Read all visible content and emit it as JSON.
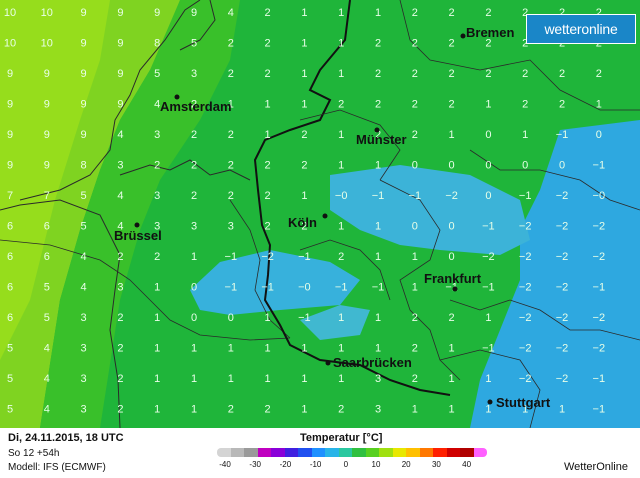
{
  "map": {
    "cities": [
      {
        "name": "Bremen"
      },
      {
        "name": "Amsterdam"
      },
      {
        "name": "Münster"
      },
      {
        "name": "Brüssel"
      },
      {
        "name": "Köln"
      },
      {
        "name": "Frankfurt"
      },
      {
        "name": "Saarbrücken"
      },
      {
        "name": "Stuttgart"
      }
    ],
    "grid_values": [
      [
        "10",
        "10",
        "9",
        "9",
        "9",
        "9",
        "4",
        "2",
        "1",
        "1",
        "1",
        "2",
        "2",
        "2",
        "2",
        "2",
        "2"
      ],
      [
        "10",
        "10",
        "9",
        "9",
        "8",
        "5",
        "2",
        "2",
        "1",
        "1",
        "2",
        "2",
        "2",
        "2",
        "2",
        "2",
        "2"
      ],
      [
        "9",
        "9",
        "9",
        "9",
        "5",
        "3",
        "2",
        "2",
        "1",
        "1",
        "2",
        "2",
        "2",
        "2",
        "2",
        "2",
        "2"
      ],
      [
        "9",
        "9",
        "9",
        "9",
        "4",
        "2",
        "1",
        "1",
        "1",
        "2",
        "2",
        "2",
        "2",
        "1",
        "2",
        "2",
        "1"
      ],
      [
        "9",
        "9",
        "9",
        "4",
        "3",
        "2",
        "2",
        "1",
        "2",
        "1",
        "2",
        "2",
        "1",
        "0",
        "1",
        "−1",
        "0"
      ],
      [
        "9",
        "9",
        "8",
        "3",
        "2",
        "2",
        "2",
        "2",
        "2",
        "1",
        "1",
        "0",
        "0",
        "0",
        "0",
        "0",
        "−1"
      ],
      [
        "7",
        "7",
        "5",
        "4",
        "3",
        "2",
        "2",
        "2",
        "1",
        "−0",
        "−1",
        "−1",
        "−2",
        "0",
        "−1",
        "−2",
        "−0"
      ],
      [
        "6",
        "6",
        "5",
        "4",
        "3",
        "3",
        "3",
        "2",
        "2",
        "1",
        "1",
        "0",
        "0",
        "−1",
        "−2",
        "−2",
        "−2"
      ],
      [
        "6",
        "6",
        "4",
        "2",
        "2",
        "1",
        "−1",
        "−2",
        "−1",
        "2",
        "1",
        "1",
        "0",
        "−2",
        "−2",
        "−2",
        "−2"
      ],
      [
        "6",
        "5",
        "4",
        "3",
        "1",
        "0",
        "−1",
        "−1",
        "−0",
        "−1",
        "−1",
        "1",
        "−1",
        "−1",
        "−2",
        "−2",
        "−1"
      ],
      [
        "6",
        "5",
        "3",
        "2",
        "1",
        "0",
        "0",
        "1",
        "−1",
        "1",
        "1",
        "2",
        "2",
        "1",
        "−2",
        "−2",
        "−2"
      ],
      [
        "5",
        "4",
        "3",
        "2",
        "1",
        "1",
        "1",
        "1",
        "1",
        "1",
        "1",
        "2",
        "1",
        "−1",
        "−2",
        "−2",
        "−2"
      ],
      [
        "5",
        "4",
        "3",
        "2",
        "1",
        "1",
        "1",
        "1",
        "1",
        "1",
        "3",
        "2",
        "1",
        "1",
        "−2",
        "−2",
        "−1"
      ],
      [
        "5",
        "4",
        "3",
        "2",
        "1",
        "1",
        "2",
        "2",
        "1",
        "2",
        "3",
        "1",
        "1",
        "1",
        "1",
        "1",
        "−1"
      ]
    ],
    "logo_text": "wetteronline"
  },
  "footer": {
    "date": "Di, 24.11.2015, 18 UTC",
    "run": "So 12 +54h",
    "model": "Modell: IFS (ECMWF)",
    "legend_title": "Temperatur [°C]",
    "brand": "WetterOnline"
  },
  "legend": {
    "ticks": [
      "-40",
      "-30",
      "-20",
      "-10",
      "0",
      "10",
      "20",
      "30",
      "40"
    ],
    "colors": [
      "#d4d4d4",
      "#b8b8b8",
      "#9a9a9a",
      "#c000c0",
      "#8a00d8",
      "#4020e0",
      "#2050f0",
      "#1e90ff",
      "#28b4e8",
      "#2ac8a0",
      "#30c040",
      "#58d020",
      "#a0e010",
      "#e8e800",
      "#ffc000",
      "#ff7800",
      "#ff2000",
      "#d00000",
      "#b00000",
      "#ff60ff"
    ]
  }
}
